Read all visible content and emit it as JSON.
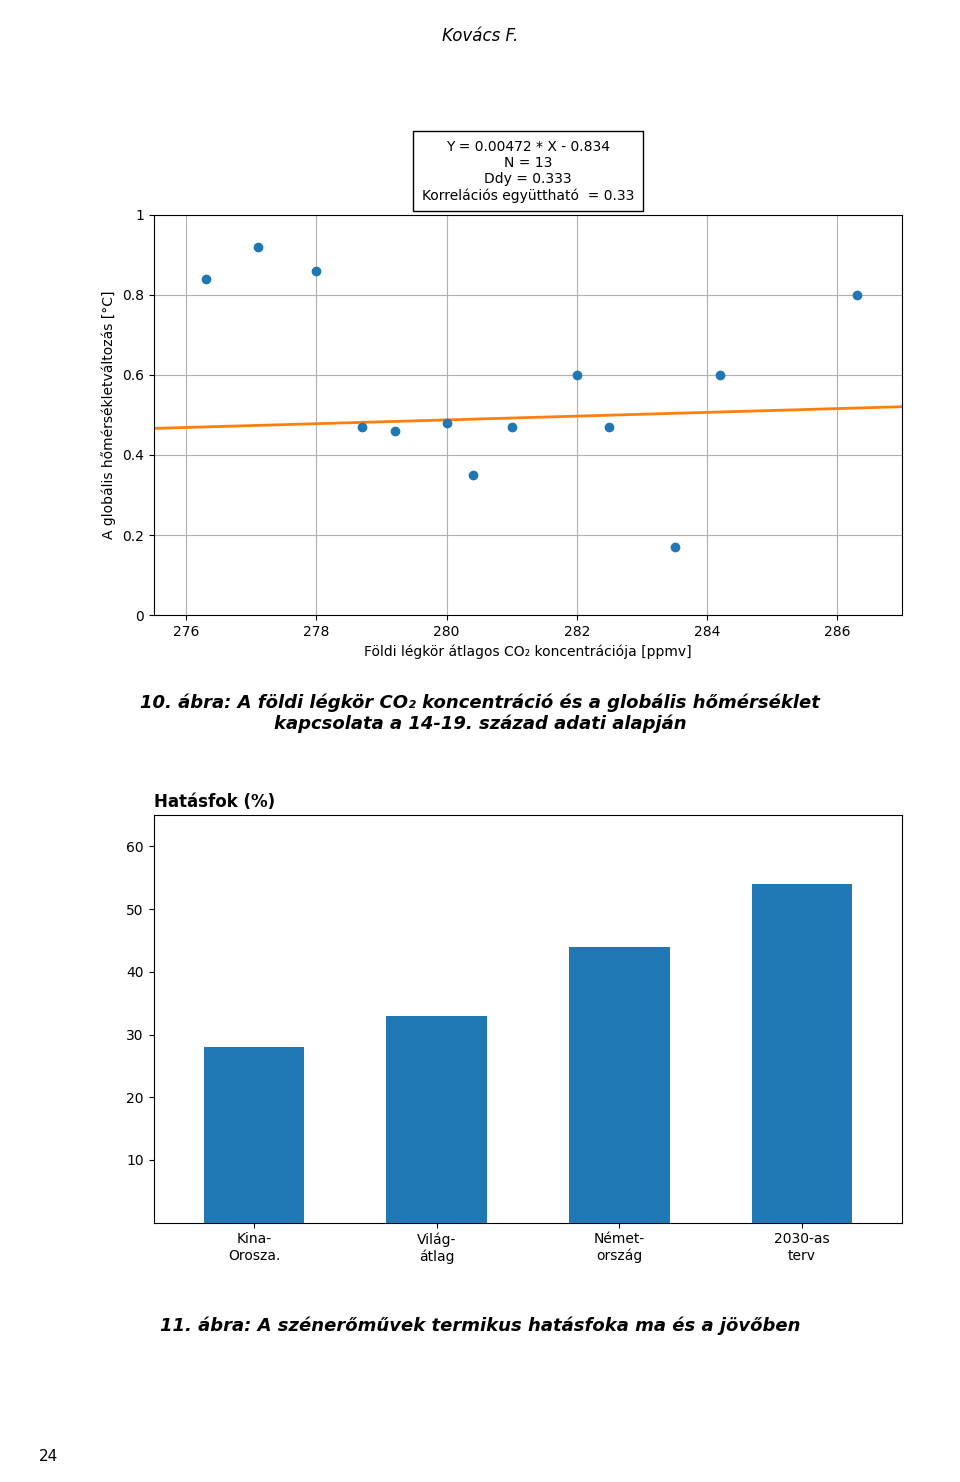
{
  "title": "Kovács F.",
  "annotations": [
    "24"
  ],
  "chart_data": [
    {
      "type": "scatter",
      "x_label": "Földi légkör átlagos CO₂ koncentrációja [ppmv]",
      "y_label": "A globális hőmérsékletváltozás [°C]",
      "annotations": [
        "Y = 0.00472 * X - 0.834\nN = 13\nDdy = 0.333\nKorrelációs együttható  = 0.33"
      ],
      "caption": "10. ábra: A földi légkör CO₂ koncentráció és a globális hőmérséklet\nkapcsolata a 14-19. század adati alapján",
      "series": [
        {
          "type": "scatter",
          "marker": "o",
          "x": [
            276.3,
            277.1,
            278.0,
            278.7,
            279.2,
            280.0,
            280.4,
            281.0,
            282.0,
            282.5,
            283.5,
            284.2,
            286.3
          ],
          "values": [
            0.84,
            0.92,
            0.86,
            0.47,
            0.46,
            0.48,
            0.35,
            0.47,
            0.6,
            0.47,
            0.17,
            0.6,
            0.8
          ]
        },
        {
          "type": "line",
          "line_style": "solid",
          "x": [
            275.5,
            287
          ],
          "values": [
            0.46636,
            0.52064
          ]
        }
      ],
      "xlim": [
        275.5,
        287
      ],
      "ylim": [
        0,
        1
      ],
      "xticks": [
        276,
        278,
        280,
        282,
        284,
        286
      ],
      "yticks": [
        0,
        0.2,
        0.4,
        0.6,
        0.8,
        1
      ],
      "grid": true
    },
    {
      "type": "bar",
      "title": "Hatásfok (%)",
      "caption": "11. ábra: A szénerőművek termikus hatásfoka ma és a jövőben",
      "categories": [
        "Kina-\nOrosza.",
        "Világ-\nátlag",
        "Német-\nország",
        "2030-as\nterv"
      ],
      "values": [
        28,
        33,
        44,
        54
      ],
      "ylim": [
        0,
        65
      ],
      "yticks": [
        10,
        20,
        30,
        40,
        50,
        60
      ],
      "grid": false
    }
  ]
}
